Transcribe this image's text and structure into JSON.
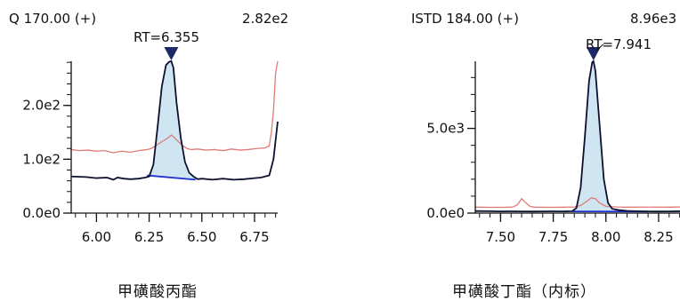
{
  "colors": {
    "quant_trace": "#0d1030",
    "reference_trace": "#e07a78",
    "peak_fill": "#cfe6f2",
    "baseline": "#1f2fd0",
    "marker": "#1b2a66",
    "axis": "#111111"
  },
  "chart_data": [
    {
      "type": "line",
      "ion_label": "Q 170.00 (+)",
      "max_intensity_label": "2.82e2",
      "rt_label": "RT=6.355",
      "retention_time": 6.355,
      "caption": "甲磺酸丙酯",
      "xlim": [
        5.88,
        6.86
      ],
      "ylim": [
        0,
        282
      ],
      "x_tick_labels": [
        {
          "value": 6.0,
          "label": "6.00"
        },
        {
          "value": 6.25,
          "label": "6.25"
        },
        {
          "value": 6.5,
          "label": "6.50"
        },
        {
          "value": 6.75,
          "label": "6.75"
        }
      ],
      "x_minor_step": 0.05,
      "y_tick_labels": [
        {
          "value": 0,
          "label": "0.0e0"
        },
        {
          "value": 100,
          "label": "1.0e2"
        },
        {
          "value": 200,
          "label": "2.0e2"
        }
      ],
      "y_minor_step": 20,
      "peak_range": [
        6.24,
        6.47
      ],
      "baseline_segment": {
        "x": [
          6.24,
          6.47
        ],
        "y": [
          70,
          62
        ]
      },
      "series": [
        {
          "role": "quant",
          "x": [
            5.88,
            5.95,
            6.0,
            6.05,
            6.08,
            6.1,
            6.13,
            6.16,
            6.2,
            6.23,
            6.25,
            6.27,
            6.29,
            6.31,
            6.33,
            6.345,
            6.355,
            6.365,
            6.38,
            6.4,
            6.42,
            6.44,
            6.46,
            6.48,
            6.5,
            6.55,
            6.6,
            6.65,
            6.7,
            6.75,
            6.78,
            6.8,
            6.82,
            6.84,
            6.86
          ],
          "y": [
            68,
            67,
            65,
            66,
            62,
            66,
            64,
            63,
            64,
            66,
            68,
            90,
            160,
            235,
            275,
            281,
            282,
            270,
            205,
            140,
            95,
            75,
            68,
            63,
            64,
            62,
            64,
            62,
            63,
            65,
            66,
            68,
            70,
            100,
            170
          ]
        },
        {
          "role": "reference",
          "x": [
            5.88,
            5.92,
            5.96,
            6.0,
            6.04,
            6.08,
            6.12,
            6.16,
            6.2,
            6.24,
            6.26,
            6.28,
            6.3,
            6.32,
            6.34,
            6.355,
            6.37,
            6.39,
            6.41,
            6.43,
            6.45,
            6.48,
            6.52,
            6.56,
            6.6,
            6.64,
            6.68,
            6.72,
            6.76,
            6.8,
            6.82,
            6.83,
            6.84,
            6.85,
            6.86
          ],
          "y": [
            118,
            116,
            117,
            115,
            116,
            112,
            115,
            113,
            116,
            118,
            120,
            125,
            130,
            135,
            140,
            145,
            140,
            132,
            125,
            120,
            118,
            119,
            117,
            118,
            116,
            119,
            117,
            118,
            120,
            121,
            125,
            150,
            190,
            260,
            282
          ]
        }
      ]
    },
    {
      "type": "line",
      "ion_label": "ISTD 184.00 (+)",
      "max_intensity_label": "8.96e3",
      "rt_label": "RT=7.941",
      "retention_time": 7.941,
      "caption": "甲磺酸丁酯（内标）",
      "xlim": [
        7.38,
        8.36
      ],
      "ylim": [
        0,
        8960
      ],
      "x_tick_labels": [
        {
          "value": 7.5,
          "label": "7.50"
        },
        {
          "value": 7.75,
          "label": "7.75"
        },
        {
          "value": 8.0,
          "label": "8.00"
        },
        {
          "value": 8.25,
          "label": "8.25"
        }
      ],
      "x_minor_step": 0.05,
      "y_tick_labels": [
        {
          "value": 0,
          "label": "0.0e0"
        },
        {
          "value": 5000,
          "label": "5.0e3"
        }
      ],
      "y_minor_step": 1000,
      "peak_range": [
        7.84,
        8.03
      ],
      "baseline_segment": {
        "x": [
          7.84,
          8.2
        ],
        "y": [
          100,
          90
        ]
      },
      "series": [
        {
          "role": "quant",
          "x": [
            7.38,
            7.45,
            7.5,
            7.55,
            7.6,
            7.65,
            7.7,
            7.75,
            7.8,
            7.84,
            7.86,
            7.88,
            7.9,
            7.92,
            7.935,
            7.941,
            7.95,
            7.97,
            7.99,
            8.01,
            8.03,
            8.06,
            8.1,
            8.15,
            8.2,
            8.25,
            8.3,
            8.36
          ],
          "y": [
            120,
            110,
            100,
            105,
            100,
            95,
            100,
            105,
            100,
            110,
            300,
            1500,
            4500,
            7800,
            8900,
            8960,
            8400,
            5200,
            2000,
            600,
            250,
            180,
            130,
            110,
            100,
            95,
            100,
            110
          ]
        },
        {
          "role": "reference",
          "x": [
            7.38,
            7.45,
            7.52,
            7.56,
            7.58,
            7.6,
            7.62,
            7.64,
            7.66,
            7.7,
            7.75,
            7.8,
            7.85,
            7.88,
            7.91,
            7.93,
            7.95,
            7.97,
            8.0,
            8.05,
            8.1,
            8.2,
            8.3,
            8.36
          ],
          "y": [
            350,
            340,
            345,
            360,
            500,
            850,
            600,
            400,
            350,
            345,
            340,
            350,
            360,
            450,
            700,
            900,
            850,
            600,
            400,
            360,
            350,
            355,
            350,
            360
          ]
        }
      ]
    }
  ]
}
